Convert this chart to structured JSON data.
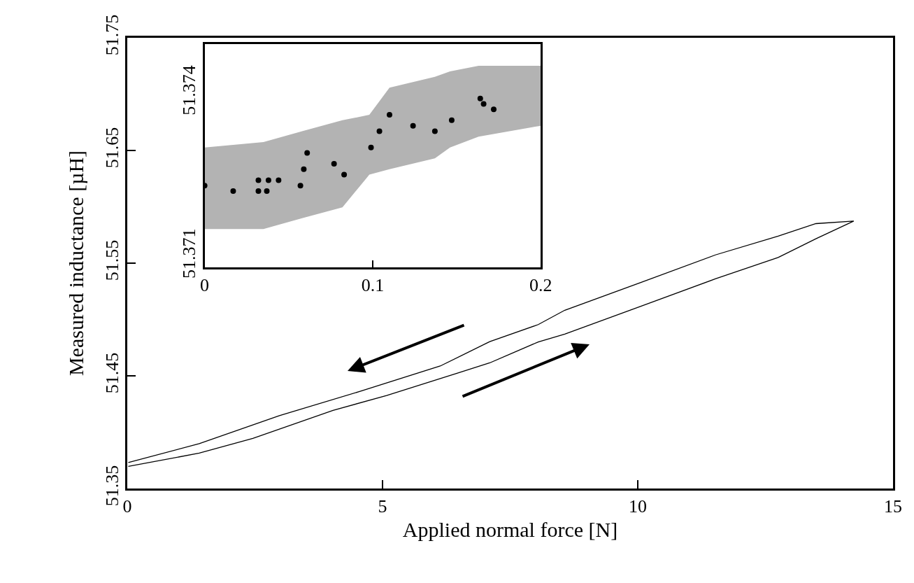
{
  "chart_data": [
    {
      "type": "line",
      "xlabel": "Applied normal force [N]",
      "ylabel": "Measured inductance [µH]",
      "xlim": [
        0,
        15
      ],
      "xticks": [
        0,
        5,
        10,
        15
      ],
      "ylim": [
        51.35,
        51.75
      ],
      "yticks": [
        51.35,
        51.45,
        51.55,
        51.65,
        51.75
      ],
      "marker": "none",
      "line_style": "solid",
      "series": [
        {
          "color": "#000000",
          "x": [
            0.02,
            1.41,
            2.46,
            4.03,
            5.08,
            6.49,
            7.1,
            8.05,
            8.57,
            10.05,
            11.52,
            12.75,
            13.49,
            14.23,
            13.49,
            12.75,
            11.52,
            10.05,
            8.57,
            8.05,
            7.1,
            6.13,
            4.55,
            2.98,
            1.41,
            0.02
          ],
          "values": [
            51.3696,
            51.3814,
            51.3945,
            51.4194,
            51.4325,
            51.4527,
            51.4615,
            51.4801,
            51.487,
            51.5116,
            51.5361,
            51.555,
            51.5717,
            51.5873,
            51.5851,
            51.574,
            51.5573,
            51.5327,
            51.5082,
            51.4955,
            51.4803,
            51.4587,
            51.4361,
            51.4147,
            51.3898,
            51.3731
          ]
        }
      ]
    },
    {
      "type": "scatter",
      "xlim": [
        0,
        0.2
      ],
      "xticks": [
        0,
        0.1,
        0.2
      ],
      "ylim": [
        51.3708,
        51.3749
      ],
      "yticks": [
        51.371,
        51.374
      ],
      "marker": "circle",
      "series": [
        {
          "type": "area",
          "color": "#b3b3b3",
          "x": [
            0,
            0.035,
            0.058,
            0.082,
            0.098,
            0.11,
            0.137,
            0.146,
            0.163,
            0.2
          ],
          "values": [
            null,
            null,
            null,
            null,
            null,
            null,
            null,
            null,
            null,
            null
          ],
          "lower": [
            51.3715,
            51.3715,
            51.3717,
            51.3719,
            51.3725,
            51.3726,
            51.3728,
            51.373,
            51.3732,
            51.3734
          ],
          "upper": [
            51.373,
            51.3731,
            51.3733,
            51.3735,
            51.3736,
            51.3741,
            51.3743,
            51.3744,
            51.3745,
            51.3745
          ]
        },
        {
          "type": "scatter",
          "color": "#000000",
          "x": [
            0,
            0.017,
            0.032,
            0.032,
            0.037,
            0.038,
            0.044,
            0.057,
            0.059,
            0.061,
            0.077,
            0.083,
            0.099,
            0.104,
            0.11,
            0.124,
            0.137,
            0.147,
            0.164,
            0.166,
            0.172
          ],
          "values": [
            51.3723,
            51.3722,
            51.3724,
            51.3722,
            51.3722,
            51.3724,
            51.3724,
            51.3723,
            51.3726,
            51.3729,
            51.3727,
            51.3725,
            51.373,
            51.3733,
            51.3736,
            51.3734,
            51.3733,
            51.3735,
            51.3739,
            51.3738,
            51.3737
          ]
        }
      ]
    }
  ]
}
